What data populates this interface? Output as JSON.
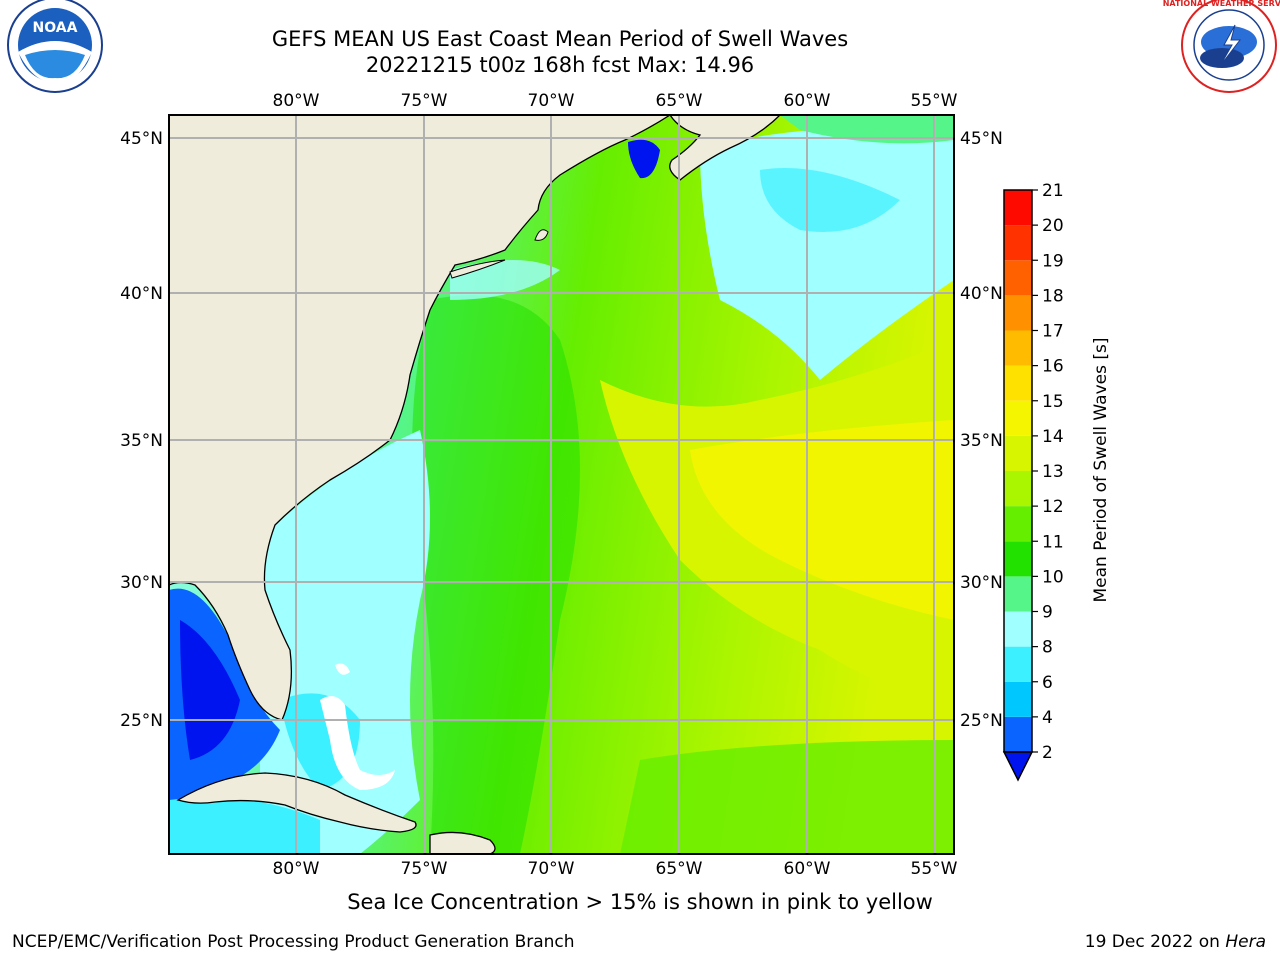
{
  "title": {
    "line1": "GEFS MEAN US East Coast Mean Period of Swell Waves",
    "line2": "20221215 t00z 168h fcst   Max: 14.96"
  },
  "logos": {
    "left": "NOAA",
    "right": "NATIONAL WEATHER SERVICE"
  },
  "map": {
    "lon_ticks": [
      "80°W",
      "75°W",
      "70°W",
      "65°W",
      "60°W",
      "55°W"
    ],
    "lat_ticks": [
      "45°N",
      "40°N",
      "35°N",
      "30°N",
      "25°N"
    ],
    "land_color": "#efecdc",
    "grid_color": "#b0b0b0"
  },
  "colorbar": {
    "label": "Mean Period of Swell Waves [s]",
    "ticks": [
      "2",
      "4",
      "6",
      "8",
      "9",
      "10",
      "11",
      "12",
      "13",
      "14",
      "15",
      "16",
      "17",
      "18",
      "19",
      "20",
      "21"
    ],
    "colors": [
      "#0a64ff",
      "#00c8ff",
      "#3cf0ff",
      "#a0ffff",
      "#55f58a",
      "#22e000",
      "#66ee00",
      "#aaf500",
      "#d8f500",
      "#f5f500",
      "#ffe100",
      "#ffbb00",
      "#ff9100",
      "#ff6000",
      "#ff3200",
      "#ff0a00"
    ],
    "under_color": "#0014f0"
  },
  "footer": {
    "note": "Sea Ice Concentration > 15% is shown in pink to yellow",
    "left": "NCEP/EMC/Verification Post Processing Product Generation Branch",
    "date": "19 Dec 2022 on ",
    "host": "Hera"
  }
}
